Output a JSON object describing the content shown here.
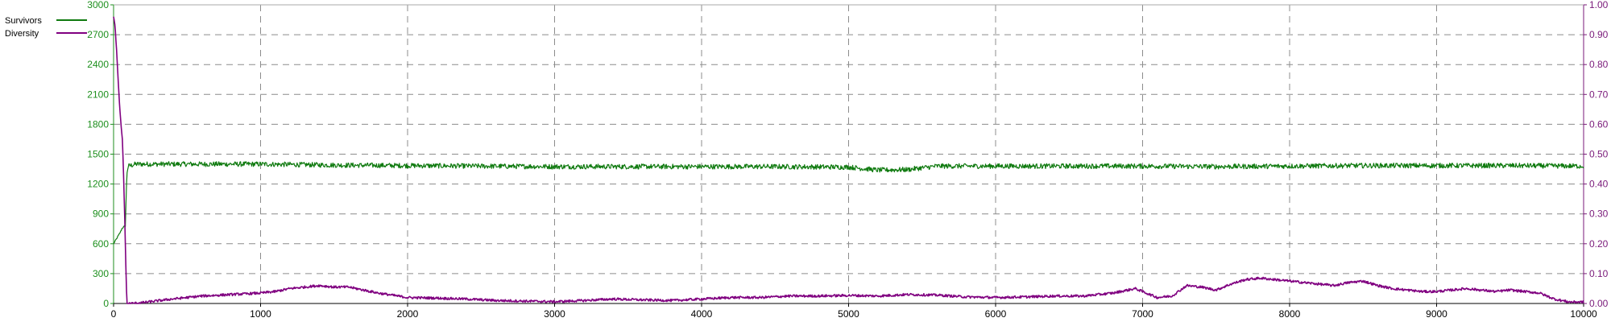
{
  "chart_data": {
    "type": "line",
    "x_axis": {
      "min": 0,
      "max": 10000,
      "ticks": [
        "0",
        "1000",
        "2000",
        "3000",
        "4000",
        "5000",
        "6000",
        "7000",
        "8000",
        "9000",
        "10000"
      ]
    },
    "y_axis_left": {
      "min": 0,
      "max": 3000,
      "ticks": [
        "0",
        "300",
        "600",
        "900",
        "1200",
        "1500",
        "1800",
        "2100",
        "2400",
        "2700",
        "3000"
      ],
      "color": "#1d8f1d"
    },
    "y_axis_right": {
      "min": 0,
      "max": 1,
      "ticks": [
        "0.00",
        "0.10",
        "0.20",
        "0.30",
        "0.40",
        "0.50",
        "0.60",
        "0.70",
        "0.80",
        "0.90",
        "1.00"
      ],
      "color": "#7a1a7a"
    },
    "grid": true,
    "legend": {
      "placement": "top-left"
    },
    "series": [
      {
        "name": "Survivors",
        "axis": "left",
        "color": "#0f7a0f",
        "x": [
          0,
          20,
          40,
          60,
          80,
          90,
          100,
          150,
          200,
          500,
          1000,
          1500,
          2000,
          2500,
          3000,
          3500,
          4000,
          4500,
          5000,
          5200,
          5400,
          5600,
          6000,
          6500,
          7000,
          7500,
          8000,
          8500,
          9000,
          9500,
          10000
        ],
        "values": [
          600,
          650,
          700,
          760,
          780,
          1300,
          1380,
          1400,
          1400,
          1400,
          1400,
          1390,
          1385,
          1380,
          1375,
          1375,
          1375,
          1375,
          1370,
          1340,
          1345,
          1380,
          1380,
          1380,
          1380,
          1375,
          1380,
          1385,
          1385,
          1385,
          1380
        ],
        "noise": 25
      },
      {
        "name": "Diversity",
        "axis": "right",
        "color": "#800080",
        "x": [
          0,
          10,
          20,
          30,
          40,
          50,
          60,
          70,
          80,
          90,
          120,
          200,
          400,
          600,
          800,
          1000,
          1100,
          1200,
          1300,
          1400,
          1500,
          1600,
          1700,
          1800,
          2000,
          2200,
          2400,
          2600,
          2800,
          3000,
          3200,
          3400,
          3600,
          3800,
          4000,
          4200,
          4400,
          4600,
          4800,
          5000,
          5200,
          5400,
          5600,
          5800,
          6000,
          6200,
          6400,
          6600,
          6800,
          6950,
          7100,
          7200,
          7300,
          7400,
          7500,
          7600,
          7700,
          7800,
          7900,
          8000,
          8100,
          8200,
          8300,
          8400,
          8500,
          8600,
          8700,
          8800,
          8900,
          9000,
          9200,
          9400,
          9500,
          9600,
          9700,
          9800,
          9900,
          10000
        ],
        "values": [
          0.96,
          0.93,
          0.85,
          0.76,
          0.67,
          0.6,
          0.55,
          0.4,
          0.2,
          0,
          0,
          0.003,
          0.015,
          0.025,
          0.03,
          0.035,
          0.04,
          0.05,
          0.055,
          0.06,
          0.055,
          0.055,
          0.045,
          0.035,
          0.02,
          0.018,
          0.015,
          0.01,
          0.008,
          0.006,
          0.01,
          0.015,
          0.012,
          0.01,
          0.015,
          0.02,
          0.02,
          0.025,
          0.025,
          0.027,
          0.025,
          0.03,
          0.028,
          0.022,
          0.02,
          0.022,
          0.025,
          0.025,
          0.035,
          0.05,
          0.02,
          0.025,
          0.06,
          0.055,
          0.045,
          0.065,
          0.08,
          0.085,
          0.08,
          0.075,
          0.07,
          0.065,
          0.06,
          0.07,
          0.075,
          0.06,
          0.05,
          0.045,
          0.04,
          0.04,
          0.05,
          0.04,
          0.045,
          0.04,
          0.035,
          0.015,
          0.005,
          0.005
        ],
        "noise": 0.004
      }
    ]
  }
}
